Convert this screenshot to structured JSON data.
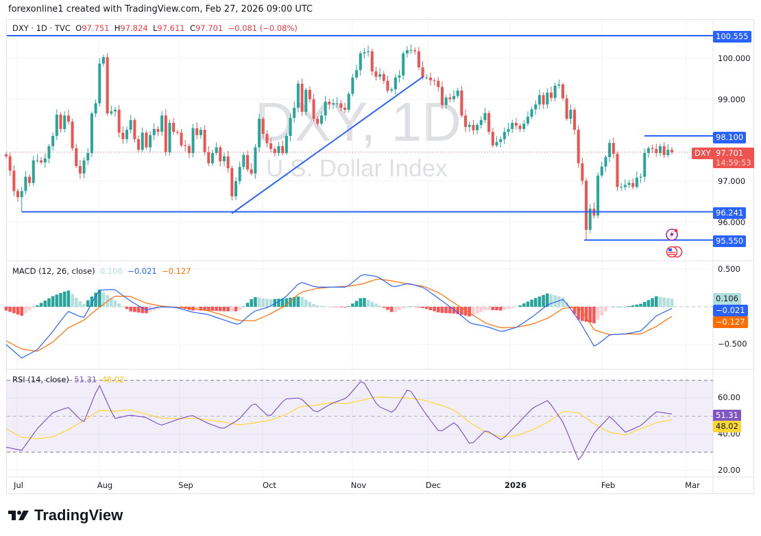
{
  "header": {
    "credit": "forexonline1 created with TradingView.com, Feb 27, 2026 09:00 UTC"
  },
  "legend": {
    "symbol": "DXY · 1D · TVC",
    "o_label": "O",
    "o": "97.751",
    "h_label": "H",
    "h": "97.824",
    "l_label": "L",
    "l": "97.611",
    "c_label": "C",
    "c": "97.701",
    "change": "−0.081 (−0.08%)"
  },
  "watermark": {
    "title": "DXY, 1D",
    "subtitle": "U.S. Dollar Index"
  },
  "price_axis": {
    "ticks": [
      "100.000",
      "99.000",
      "97.000",
      "96.000"
    ],
    "tick_values": [
      100,
      99,
      97,
      96
    ]
  },
  "last_price": {
    "symbol_tag": "DXY",
    "price": "97.701",
    "countdown": "14:59:53",
    "value": 97.701
  },
  "drawings": {
    "hlines": [
      {
        "label": "100.555",
        "level": 100.555
      },
      {
        "label": "98.100",
        "level": 98.1
      },
      {
        "label": "96.241",
        "level": 96.241
      },
      {
        "label": "95.550",
        "level": 95.55
      }
    ],
    "trendline": {
      "from": 96.2,
      "to": 99.55
    }
  },
  "macd": {
    "title": "MACD (12, 26, close)",
    "hist": "0.106",
    "macd": "−0.021",
    "signal": "−0.127",
    "ticks": [
      "0.500",
      "−0.500"
    ],
    "tick_values": [
      0.5,
      -0.5
    ]
  },
  "rsi": {
    "title": "RSI (14, close)",
    "value": "51.31",
    "ma": "48.02",
    "ticks": [
      "60.00",
      "40.00",
      "20.00"
    ],
    "tick_values": [
      60,
      40,
      20
    ],
    "bands": [
      70,
      50,
      30
    ]
  },
  "x_axis": {
    "labels": [
      "Jul",
      "Aug",
      "Sep",
      "Oct",
      "Nov",
      "Dec",
      "2026",
      "Feb",
      "Mar"
    ]
  },
  "colors": {
    "up": "#26a69a",
    "down": "#ef5350",
    "drawing": "#2962ff",
    "macd": "#2962ff",
    "signal": "#ff6d00",
    "rsi": "#7e57c2",
    "rsi_ma": "#fdd835",
    "hist_up": "#26a69a",
    "hist_up_fading": "#b2dfdb",
    "hist_down": "#ff5252",
    "hist_down_fading": "#ffcdd2"
  },
  "brand": {
    "name": "TradingView"
  },
  "chart_data": {
    "type": "candlestick",
    "symbol": "DXY",
    "interval": "1D",
    "ylim": [
      95.3,
      100.9
    ],
    "close": [
      97.6,
      97.25,
      96.75,
      96.6,
      96.75,
      97.1,
      96.95,
      97.5,
      97.5,
      97.45,
      97.55,
      97.85,
      98.1,
      98.62,
      98.27,
      98.6,
      98.45,
      97.8,
      97.36,
      97.18,
      97.5,
      97.68,
      98.65,
      98.9,
      99.87,
      100.03,
      98.65,
      98.7,
      98.74,
      98.18,
      98.02,
      98.25,
      98.49,
      98.02,
      97.76,
      98.18,
      97.82,
      98.12,
      98.27,
      98.2,
      98.6,
      97.7,
      98.42,
      98.2,
      98.18,
      97.87,
      97.85,
      97.68,
      98.29,
      98.12,
      98.25,
      97.7,
      97.43,
      97.68,
      97.82,
      97.48,
      97.6,
      97.31,
      96.62,
      96.99,
      97.34,
      97.63,
      97.28,
      97.18,
      97.82,
      98.52,
      98.15,
      97.92,
      97.78,
      97.68,
      97.85,
      97.68,
      98.1,
      98.54,
      98.79,
      99.38,
      98.69,
      99.23,
      99.0,
      98.52,
      98.4,
      98.6,
      98.94,
      98.87,
      98.9,
      98.9,
      98.79,
      98.74,
      99.13,
      99.53,
      99.71,
      100.12,
      100.15,
      100.17,
      99.68,
      99.55,
      99.61,
      99.45,
      99.21,
      99.24,
      99.53,
      99.58,
      100.12,
      100.2,
      100.2,
      100.17,
      99.78,
      99.53,
      99.53,
      99.46,
      99.45,
      99.3,
      98.86,
      99.04,
      99.0,
      99.08,
      99.21,
      98.6,
      98.32,
      98.37,
      98.24,
      98.37,
      98.49,
      98.66,
      98.2,
      97.87,
      97.95,
      98.02,
      98.2,
      98.27,
      98.42,
      98.35,
      98.27,
      98.4,
      98.57,
      98.75,
      98.87,
      99.1,
      98.87,
      99.16,
      99.03,
      99.33,
      99.36,
      99.02,
      98.52,
      98.74,
      98.25,
      97.43,
      97.0,
      95.8,
      96.32,
      96.15,
      97.13,
      97.35,
      97.58,
      97.93,
      97.66,
      96.85,
      96.85,
      96.9,
      96.95,
      96.85,
      97.08,
      97.1,
      97.68,
      97.8,
      97.78,
      97.68,
      97.85,
      97.63,
      97.76,
      97.7
    ],
    "macd_line": [
      -0.5,
      -0.68,
      -0.57,
      -0.33,
      -0.06,
      -0.15,
      0.22,
      0.23,
      0.08,
      -0.04,
      0.0,
      -0.01,
      -0.07,
      -0.1,
      -0.17,
      -0.24,
      -0.06,
      0.0,
      0.12,
      0.33,
      0.26,
      0.26,
      0.26,
      0.43,
      0.4,
      0.26,
      0.31,
      0.25,
      0.1,
      -0.05,
      -0.22,
      -0.26,
      -0.33,
      -0.27,
      -0.13,
      0.03,
      0.1,
      -0.18,
      -0.53,
      -0.37,
      -0.36,
      -0.32,
      -0.12,
      -0.021
    ],
    "signal_line": [
      -0.45,
      -0.56,
      -0.59,
      -0.47,
      -0.28,
      -0.18,
      -0.01,
      0.14,
      0.14,
      0.05,
      0.01,
      -0.01,
      -0.02,
      -0.05,
      -0.11,
      -0.18,
      -0.19,
      -0.1,
      0.01,
      0.19,
      0.24,
      0.26,
      0.27,
      0.3,
      0.37,
      0.34,
      0.3,
      0.27,
      0.18,
      0.04,
      -0.09,
      -0.22,
      -0.28,
      -0.27,
      -0.23,
      -0.15,
      -0.02,
      0.0,
      -0.31,
      -0.37,
      -0.36,
      -0.36,
      -0.26,
      -0.127
    ],
    "rsi_line": [
      32.8,
      31,
      43,
      51.9,
      55,
      46.4,
      67.6,
      48.7,
      50.6,
      49.4,
      44.9,
      48,
      50.6,
      46.2,
      43,
      48,
      57.6,
      49.4,
      59.6,
      60.2,
      51.9,
      57,
      60.2,
      70.4,
      55.7,
      51.9,
      65.9,
      52.5,
      41,
      46.8,
      34,
      42.4,
      36.6,
      45.5,
      54.5,
      58.9,
      46.2,
      25,
      41,
      50,
      41,
      44.9,
      52.5,
      51.31
    ],
    "rsi_ma_line": [
      43,
      38.3,
      37.5,
      38.5,
      42.4,
      47.5,
      53.2,
      52.8,
      53.6,
      51.3,
      49,
      48.7,
      49,
      48,
      46.8,
      45.2,
      46.2,
      47.7,
      50.6,
      55.4,
      56.1,
      57.6,
      57,
      58.9,
      60.8,
      60.4,
      60.2,
      58.9,
      56.4,
      53.2,
      46.2,
      41,
      38.5,
      39.2,
      42.4,
      46.8,
      52.8,
      51.9,
      45.5,
      41,
      39.6,
      43,
      46.4,
      48.02
    ]
  }
}
